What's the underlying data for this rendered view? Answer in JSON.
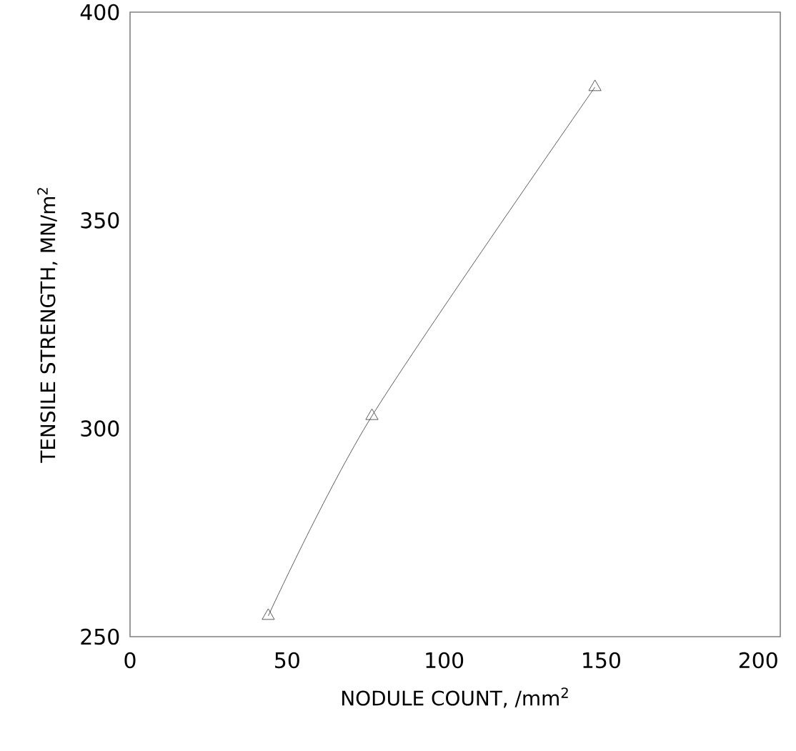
{
  "chart_data": {
    "type": "line",
    "xlabel": "NODULE COUNT,  /mm$^{2}$",
    "ylabel": "TENSILE STRENGTH,  MN/m$^{2}$",
    "x": [
      44,
      77,
      148
    ],
    "values": [
      255,
      303,
      382
    ],
    "color": "#333333",
    "marker": "triangle",
    "line_style": "solid",
    "grid": false,
    "xlim": [
      0,
      207
    ],
    "ylim": [
      250,
      400
    ],
    "xticks": [
      0,
      50,
      100,
      150,
      200
    ],
    "yticks": [
      250,
      300,
      350,
      400
    ]
  }
}
